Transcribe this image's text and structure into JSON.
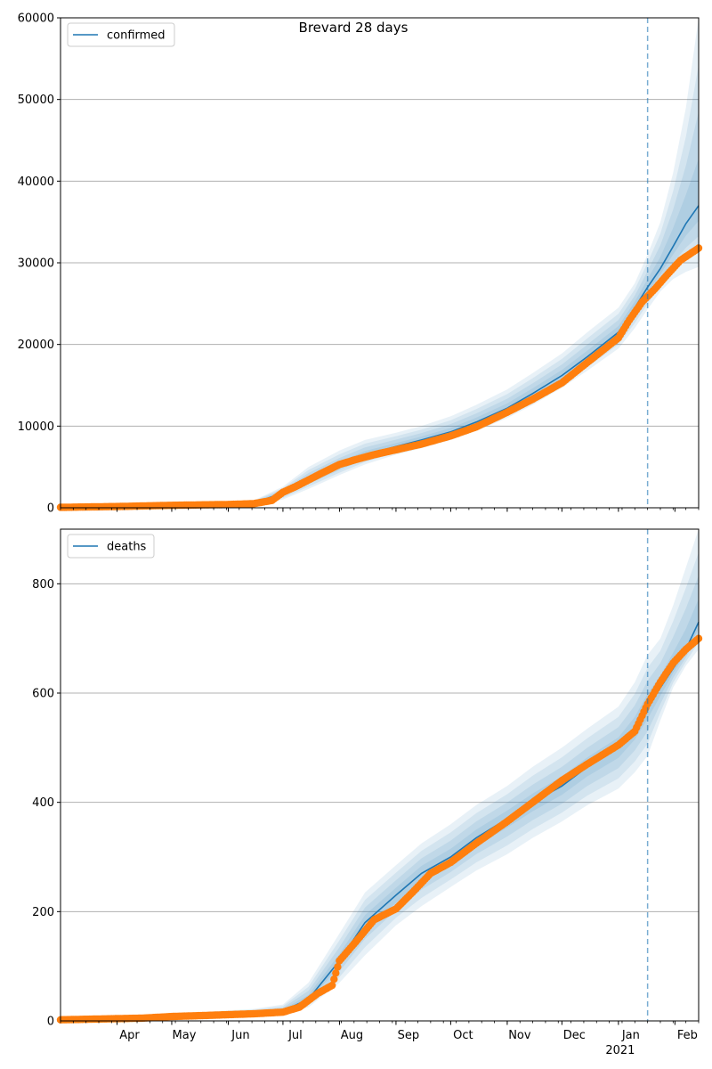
{
  "figure_title": "Brevard 28 days",
  "colors": {
    "model": "#1f77b4",
    "observed": "#ff7f0e",
    "band": "#1f77b4",
    "grid": "#b0b0b0",
    "today_line": "#1f77b4"
  },
  "x_axis": {
    "start": "2020-03-01",
    "end": "2021-02-14",
    "month_tick_labels": [
      "Apr",
      "May",
      "Jun",
      "Jul",
      "Aug",
      "Sep",
      "Oct",
      "Nov",
      "Dec",
      "Jan",
      "Feb"
    ],
    "month_tick_dates": [
      "2020-04-01",
      "2020-05-01",
      "2020-06-01",
      "2020-07-01",
      "2020-08-01",
      "2020-09-01",
      "2020-10-01",
      "2020-11-01",
      "2020-12-01",
      "2021-01-01",
      "2021-02-01"
    ],
    "year_label": "2021",
    "forecast_start": "2021-01-17"
  },
  "chart_data": [
    {
      "type": "line",
      "title": "Brevard 28 days",
      "legend": [
        "confirmed"
      ],
      "legend_position": "top-left",
      "grid": "horizontal",
      "ylim": [
        0,
        60000
      ],
      "yticks": [
        0,
        10000,
        20000,
        30000,
        40000,
        50000,
        60000
      ],
      "ytick_labels": [
        "0",
        "10000",
        "20000",
        "30000",
        "40000",
        "50000",
        "60000"
      ],
      "forecast_start": "2021-01-17",
      "series": [
        {
          "name": "confirmed",
          "kind": "model",
          "x": [
            "2020-03-01",
            "2020-06-15",
            "2020-07-01",
            "2020-07-15",
            "2020-08-01",
            "2020-08-15",
            "2020-09-01",
            "2020-09-15",
            "2020-10-01",
            "2020-10-15",
            "2020-11-01",
            "2020-11-15",
            "2020-12-01",
            "2020-12-15",
            "2021-01-01",
            "2021-01-10",
            "2021-01-17",
            "2021-01-24",
            "2021-01-31",
            "2021-02-07",
            "2021-02-14"
          ],
          "y": [
            0,
            600,
            1800,
            3500,
            5200,
            6500,
            7500,
            8300,
            9300,
            10500,
            12200,
            14000,
            16200,
            18500,
            21500,
            24500,
            27000,
            29300,
            32000,
            34800,
            37000
          ],
          "bands": {
            "lower_outer": [
              0,
              300,
              1000,
              2300,
              4000,
              5300,
              6500,
              7300,
              8300,
              9400,
              11000,
              12600,
              14700,
              16800,
              19500,
              22000,
              24300,
              26500,
              28000,
              28900,
              29500
            ],
            "upper_outer": [
              0,
              900,
              2600,
              5000,
              7000,
              8300,
              9200,
              10000,
              11200,
              12600,
              14500,
              16500,
              18900,
              21500,
              24500,
              27500,
              31000,
              35000,
              41000,
              49000,
              60000
            ]
          }
        },
        {
          "name": "observed confirmed",
          "kind": "observed",
          "x": [
            "2020-03-01",
            "2020-04-01",
            "2020-05-01",
            "2020-06-01",
            "2020-06-15",
            "2020-06-25",
            "2020-07-01",
            "2020-07-08",
            "2020-07-15",
            "2020-07-22",
            "2020-08-01",
            "2020-08-10",
            "2020-08-20",
            "2020-09-01",
            "2020-09-15",
            "2020-10-01",
            "2020-10-15",
            "2020-11-01",
            "2020-11-15",
            "2020-12-01",
            "2020-12-15",
            "2021-01-01",
            "2021-01-07",
            "2021-01-14",
            "2021-01-21",
            "2021-01-28",
            "2021-02-04",
            "2021-02-10",
            "2021-02-14"
          ],
          "y": [
            50,
            150,
            300,
            400,
            500,
            900,
            1900,
            2600,
            3400,
            4200,
            5300,
            5900,
            6500,
            7100,
            7800,
            8800,
            9900,
            11700,
            13300,
            15300,
            17800,
            20800,
            23000,
            25200,
            26800,
            28600,
            30300,
            31200,
            31800
          ]
        }
      ]
    },
    {
      "type": "line",
      "legend": [
        "deaths"
      ],
      "legend_position": "top-left",
      "grid": "horizontal",
      "ylim": [
        0,
        900
      ],
      "yticks": [
        0,
        200,
        400,
        600,
        800
      ],
      "ytick_labels": [
        "0",
        "200",
        "400",
        "600",
        "800"
      ],
      "forecast_start": "2021-01-17",
      "series": [
        {
          "name": "deaths",
          "kind": "model",
          "x": [
            "2020-03-01",
            "2020-06-15",
            "2020-07-01",
            "2020-07-15",
            "2020-08-01",
            "2020-08-15",
            "2020-09-01",
            "2020-09-15",
            "2020-10-01",
            "2020-10-15",
            "2020-11-01",
            "2020-11-15",
            "2020-12-01",
            "2020-12-15",
            "2021-01-01",
            "2021-01-10",
            "2021-01-17",
            "2021-01-24",
            "2021-01-31",
            "2021-02-07",
            "2021-02-14"
          ],
          "y": [
            0,
            15,
            18,
            40,
            110,
            180,
            230,
            270,
            300,
            335,
            370,
            400,
            430,
            465,
            500,
            535,
            575,
            610,
            645,
            680,
            730
          ],
          "bands": {
            "lower_outer": [
              0,
              10,
              12,
              25,
              70,
              120,
              175,
              210,
              245,
              275,
              305,
              335,
              365,
              395,
              425,
              455,
              485,
              550,
              610,
              650,
              680
            ],
            "upper_outer": [
              0,
              22,
              30,
              70,
              160,
              235,
              285,
              325,
              360,
              395,
              430,
              465,
              500,
              535,
              575,
              620,
              670,
              700,
              760,
              830,
              900
            ]
          }
        },
        {
          "name": "observed deaths",
          "kind": "observed",
          "x": [
            "2020-03-01",
            "2020-04-15",
            "2020-05-01",
            "2020-05-20",
            "2020-06-15",
            "2020-07-01",
            "2020-07-10",
            "2020-07-20",
            "2020-07-28",
            "2020-08-01",
            "2020-08-10",
            "2020-08-20",
            "2020-09-01",
            "2020-09-10",
            "2020-09-20",
            "2020-10-01",
            "2020-10-15",
            "2020-11-01",
            "2020-11-15",
            "2020-12-01",
            "2020-12-15",
            "2021-01-01",
            "2021-01-10",
            "2021-01-17",
            "2021-01-24",
            "2021-01-31",
            "2021-02-07",
            "2021-02-14"
          ],
          "y": [
            2,
            5,
            8,
            10,
            13,
            16,
            25,
            50,
            65,
            110,
            145,
            185,
            205,
            235,
            270,
            290,
            325,
            365,
            400,
            440,
            470,
            505,
            530,
            580,
            620,
            655,
            680,
            700
          ]
        }
      ]
    }
  ]
}
